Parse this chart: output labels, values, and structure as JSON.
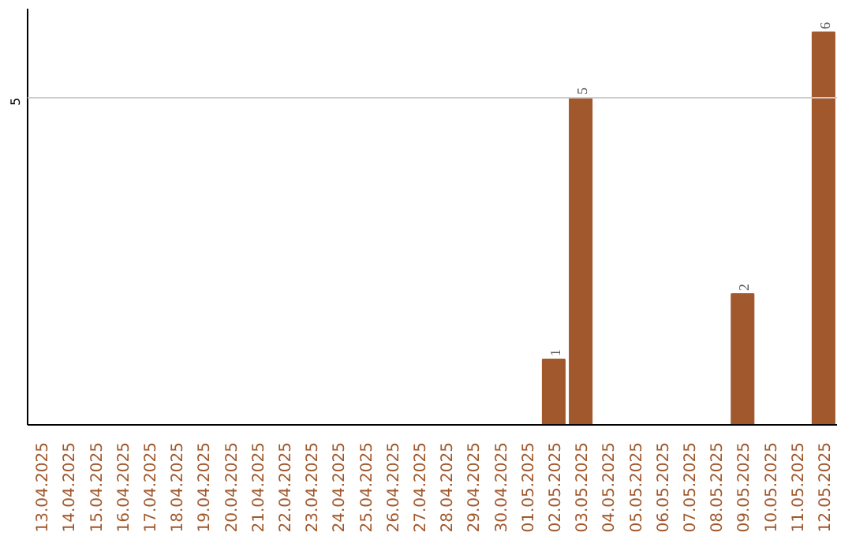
{
  "chart_data": {
    "type": "bar",
    "categories": [
      "13.04.2025",
      "14.04.2025",
      "15.04.2025",
      "16.04.2025",
      "17.04.2025",
      "18.04.2025",
      "19.04.2025",
      "20.04.2025",
      "21.04.2025",
      "22.04.2025",
      "23.04.2025",
      "24.04.2025",
      "25.04.2025",
      "26.04.2025",
      "27.04.2025",
      "28.04.2025",
      "29.04.2025",
      "30.04.2025",
      "01.05.2025",
      "02.05.2025",
      "03.05.2025",
      "04.05.2025",
      "05.05.2025",
      "06.05.2025",
      "07.05.2025",
      "08.05.2025",
      "09.05.2025",
      "10.05.2025",
      "11.05.2025",
      "12.05.2025"
    ],
    "values": [
      null,
      null,
      null,
      null,
      null,
      null,
      null,
      null,
      null,
      null,
      null,
      null,
      null,
      null,
      null,
      null,
      null,
      null,
      null,
      1,
      5,
      null,
      null,
      null,
      null,
      null,
      2,
      null,
      null,
      6
    ],
    "value_labels": [
      null,
      null,
      null,
      null,
      null,
      null,
      null,
      null,
      null,
      null,
      null,
      null,
      null,
      null,
      null,
      null,
      null,
      null,
      null,
      "1",
      "5",
      null,
      null,
      null,
      null,
      null,
      "2",
      null,
      null,
      "6"
    ],
    "color": "#a0582c",
    "ref_lines": [
      {
        "axis": "y",
        "value": 5,
        "label": "5",
        "color": "#cccccc"
      }
    ]
  }
}
